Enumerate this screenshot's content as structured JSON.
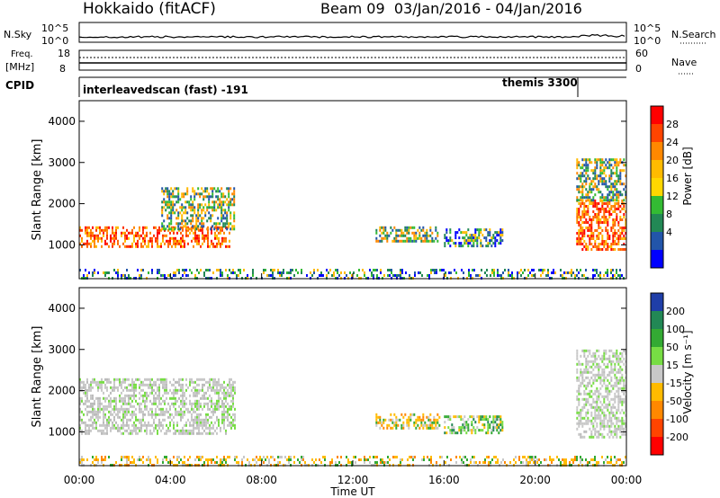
{
  "header": {
    "title": "Hokkaido (fitACF)",
    "beam_info": "Beam 09  03/Jan/2016 - 04/Jan/2016"
  },
  "aux_panels": {
    "nsky_label": "N.Sky",
    "nsky_ticks": [
      "10^5",
      "10^0"
    ],
    "nsearch_label": "N.Search",
    "nsearch_ticks": [
      "10^5",
      "10^0"
    ],
    "freq_label_line1": "Freq.",
    "freq_label_line2": "[MHz]",
    "freq_ticks": [
      "18",
      "8"
    ],
    "nave_label": "Nave",
    "nave_ticks": [
      "60",
      "0"
    ],
    "cpid_label": "CPID",
    "cpid_mode_1": "interleavedscan (fast) -191",
    "cpid_mode_2": "themis 3300"
  },
  "chart_data": [
    {
      "type": "heatmap",
      "title": "",
      "xlabel": "Time UT",
      "ylabel": "Slant Range [km]",
      "x_tick_labels": [
        "00:00",
        "04:00",
        "08:00",
        "12:00",
        "16:00",
        "20:00",
        "00:00"
      ],
      "y_tick_labels": [
        "1000",
        "2000",
        "3000",
        "4000"
      ],
      "xlim_hours": [
        0,
        24
      ],
      "ylim_km": [
        180,
        4500
      ],
      "colorbar_label": "Power [dB]",
      "colorbar_ticks": [
        "28",
        "24",
        "20",
        "16",
        "12",
        "8",
        "4"
      ],
      "colorbar_colors": [
        "#ff0000",
        "#ff4400",
        "#ff8800",
        "#ffbb00",
        "#ffd700",
        "#33bb33",
        "#228855",
        "#2255aa",
        "#0000ff"
      ],
      "echo_regions": [
        {
          "t": [
            0.0,
            6.6
          ],
          "range_km": [
            950,
            1450
          ],
          "level": "high"
        },
        {
          "t": [
            3.6,
            6.8
          ],
          "range_km": [
            1400,
            2400
          ],
          "level": "mid"
        },
        {
          "t": [
            13.0,
            15.8
          ],
          "range_km": [
            1100,
            1450
          ],
          "level": "mid"
        },
        {
          "t": [
            16.0,
            18.6
          ],
          "range_km": [
            1000,
            1400
          ],
          "level": "low"
        },
        {
          "t": [
            21.8,
            24.0
          ],
          "range_km": [
            900,
            2100
          ],
          "level": "high"
        },
        {
          "t": [
            21.8,
            24.0
          ],
          "range_km": [
            2100,
            3100
          ],
          "level": "mid"
        },
        {
          "t": [
            0.0,
            24.0
          ],
          "range_km": [
            200,
            420
          ],
          "level": "low"
        }
      ]
    },
    {
      "type": "heatmap",
      "title": "",
      "xlabel": "Time UT",
      "ylabel": "Slant Range [km]",
      "x_tick_labels": [
        "00:00",
        "04:00",
        "08:00",
        "12:00",
        "16:00",
        "20:00",
        "00:00"
      ],
      "y_tick_labels": [
        "1000",
        "2000",
        "3000",
        "4000"
      ],
      "xlim_hours": [
        0,
        24
      ],
      "ylim_km": [
        180,
        4500
      ],
      "colorbar_label": "Velocity [m s⁻¹]",
      "colorbar_ticks": [
        "200",
        "100",
        "50",
        "15",
        "-15",
        "-50",
        "-100",
        "-200"
      ],
      "colorbar_colors": [
        "#1f3ea8",
        "#228855",
        "#33aa33",
        "#77dd44",
        "#c8c8c8",
        "#ffbb00",
        "#ff8800",
        "#ff4400",
        "#ff0000"
      ],
      "echo_regions": [
        {
          "t": [
            0.0,
            6.8
          ],
          "range_km": [
            950,
            2300
          ],
          "level": "ground"
        },
        {
          "t": [
            13.0,
            15.8
          ],
          "range_km": [
            1100,
            1450
          ],
          "level": "negative"
        },
        {
          "t": [
            16.0,
            18.6
          ],
          "range_km": [
            1000,
            1400
          ],
          "level": "positive"
        },
        {
          "t": [
            21.8,
            24.0
          ],
          "range_km": [
            900,
            3000
          ],
          "level": "ground"
        },
        {
          "t": [
            0.0,
            24.0
          ],
          "range_km": [
            200,
            420
          ],
          "level": "negative"
        }
      ]
    }
  ]
}
